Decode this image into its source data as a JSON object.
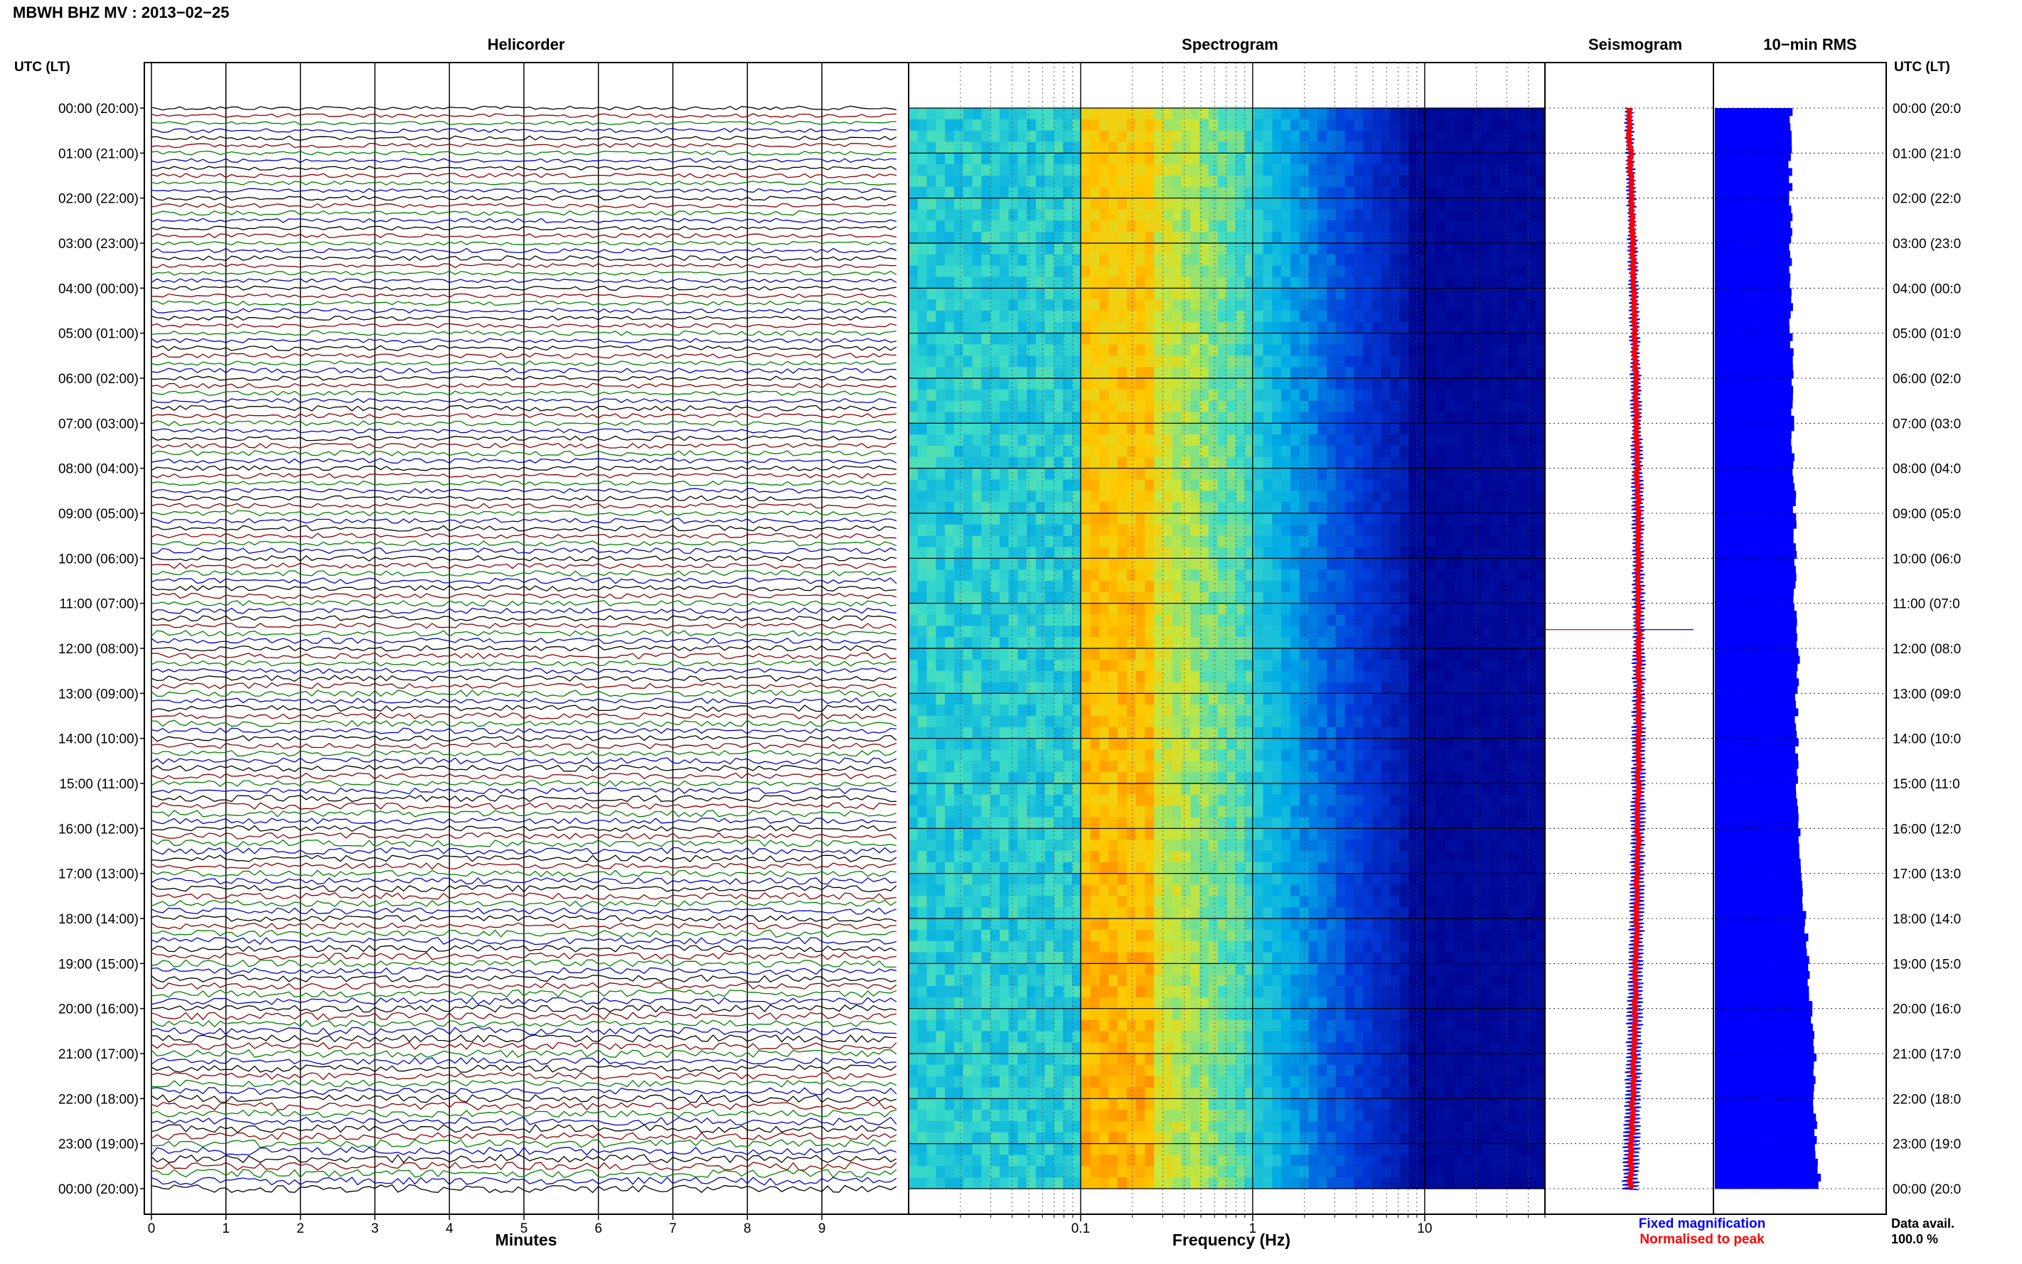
{
  "header": {
    "title": "MBWH BHZ MV : 2013−02−25",
    "left_axis_label": "UTC (LT)",
    "right_axis_label": "UTC (LT)"
  },
  "panels": {
    "helicorder": "Helicorder",
    "spectrogram": "Spectrogram",
    "seismogram": "Seismogram",
    "rms": "10−min RMS"
  },
  "time_labels_left": [
    "00:00 (20:00)",
    "01:00 (21:00)",
    "02:00 (22:00)",
    "03:00 (23:00)",
    "04:00 (00:00)",
    "05:00 (01:00)",
    "06:00 (02:00)",
    "07:00 (03:00)",
    "08:00 (04:00)",
    "09:00 (05:00)",
    "10:00 (06:00)",
    "11:00 (07:00)",
    "12:00 (08:00)",
    "13:00 (09:00)",
    "14:00 (10:00)",
    "15:00 (11:00)",
    "16:00 (12:00)",
    "17:00 (13:00)",
    "18:00 (14:00)",
    "19:00 (15:00)",
    "20:00 (16:00)",
    "21:00 (17:00)",
    "22:00 (18:00)",
    "23:00 (19:00)",
    "00:00 (20:00)"
  ],
  "time_labels_right": [
    "00:00 (20:0",
    "01:00 (21:0",
    "02:00 (22:0",
    "03:00 (23:0",
    "04:00 (00:0",
    "05:00 (01:0",
    "06:00 (02:0",
    "07:00 (03:0",
    "08:00 (04:0",
    "09:00 (05:0",
    "10:00 (06:0",
    "11:00 (07:0",
    "12:00 (08:0",
    "13:00 (09:0",
    "14:00 (10:0",
    "15:00 (11:0",
    "16:00 (12:0",
    "17:00 (13:0",
    "18:00 (14:0",
    "19:00 (15:0",
    "20:00 (16:0",
    "21:00 (17:0",
    "22:00 (18:0",
    "23:00 (19:0",
    "00:00 (20:0"
  ],
  "footer": {
    "legend_fixed": "Fixed magnification",
    "legend_normalised": "Normalised to peak",
    "data_avail_label": "Data avail.",
    "data_avail_value": "100.0 %"
  },
  "colors": {
    "trace_cycle": [
      "#000000",
      "#8b0000",
      "#008000",
      "#0000cc"
    ],
    "fixed_magnification": "#0000ff",
    "normalised_to_peak": "#ff0000",
    "rms_fill": "#0000ff",
    "spectrogram_low": "#00008b",
    "spectrogram_high": "#ff8c00"
  },
  "chart_data": [
    {
      "type": "line",
      "panel": "helicorder",
      "xlabel": "Minutes",
      "x_ticks": [
        "0",
        "1",
        "2",
        "3",
        "4",
        "5",
        "6",
        "7",
        "8",
        "9"
      ],
      "xlim": [
        0,
        10
      ],
      "y": "time_labels_left",
      "rows": 144,
      "row_minutes": 10
    },
    {
      "type": "heatmap",
      "panel": "spectrogram",
      "xlabel": "Frequency (Hz)",
      "x_scale": "log",
      "x_ticks": [
        "0.1",
        "1",
        "10"
      ],
      "xlim": [
        0.01,
        50
      ],
      "y": "time_labels_left",
      "grid": true
    },
    {
      "type": "line",
      "panel": "seismogram",
      "series": [
        {
          "name": "Fixed magnification",
          "color": "#0000ff"
        },
        {
          "name": "Normalised to peak",
          "color": "#ff0000"
        }
      ],
      "spike_at_utc": "11:35"
    },
    {
      "type": "bar",
      "panel": "10-min RMS",
      "orientation": "horizontal",
      "relative_values_hourly": [
        1.0,
        0.98,
        0.99,
        0.98,
        1.0,
        0.99,
        1.02,
        1.01,
        1.03,
        1.04,
        1.05,
        1.04,
        1.09,
        1.06,
        1.07,
        1.08,
        1.1,
        1.13,
        1.18,
        1.22,
        1.26,
        1.3,
        1.3,
        1.32,
        1.38
      ]
    }
  ]
}
